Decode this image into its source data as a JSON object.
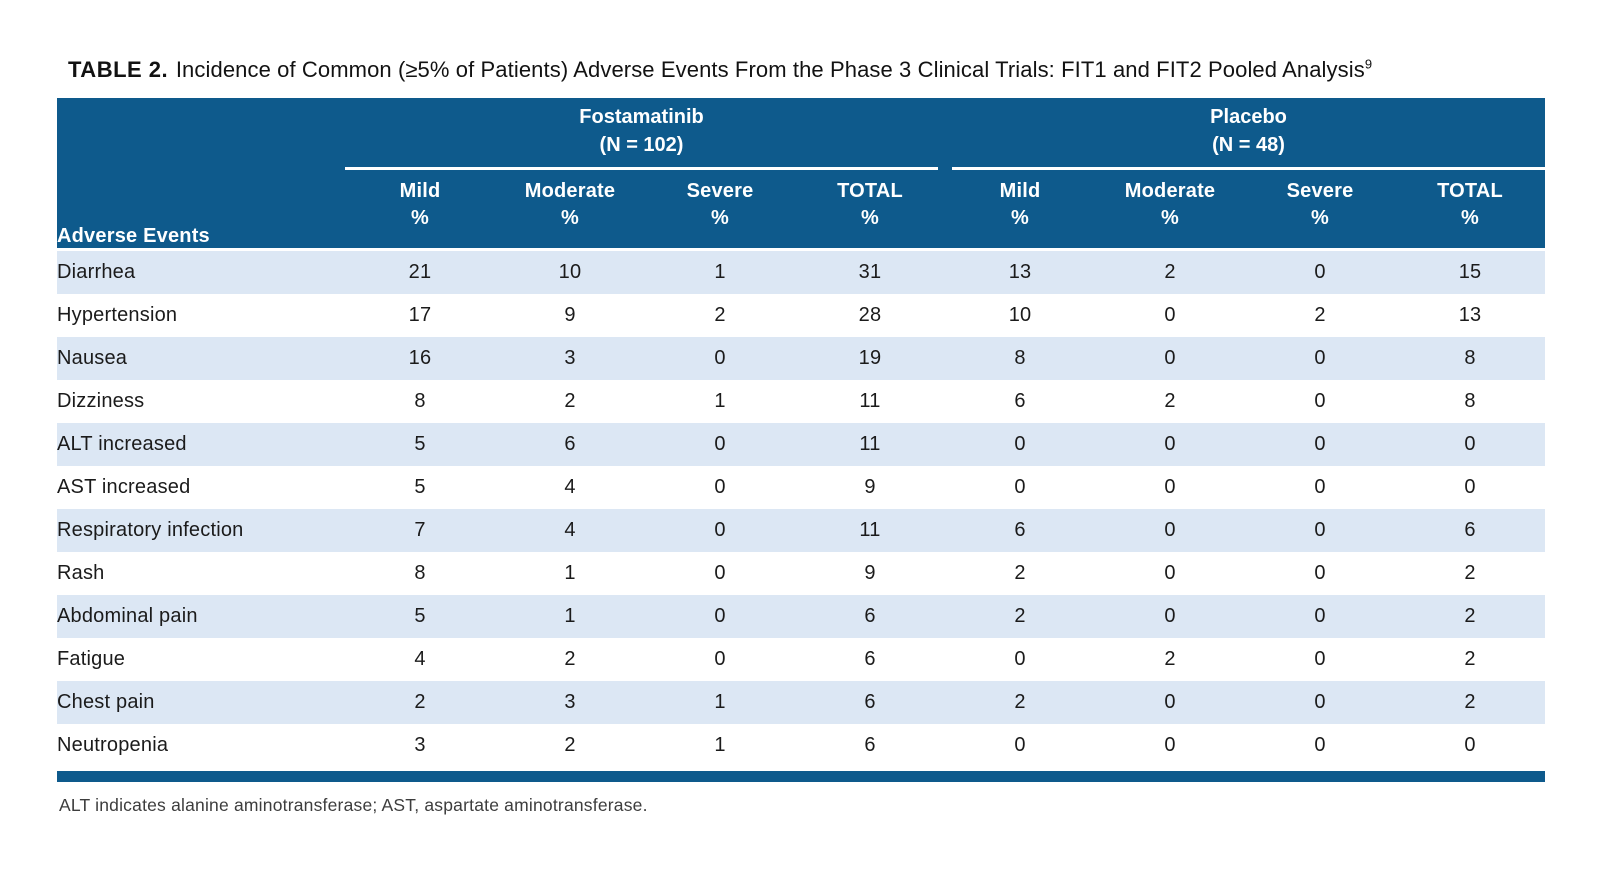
{
  "title": {
    "label": "TABLE 2.",
    "text": "Incidence of Common (≥5% of Patients) Adverse Events From the Phase 3 Clinical Trials: FIT1 and FIT2 Pooled Analysis",
    "citation_superscript": "9"
  },
  "colors": {
    "header_bg": "#0E5A8C",
    "header_text": "#FFFFFF",
    "row_stripe_bg": "#DCE7F4",
    "row_plain_bg": "#FFFFFF",
    "body_text": "#1B1B1B",
    "footnote_text": "#3D3D3D"
  },
  "table": {
    "row_header_label": "Adverse Events",
    "column_groups": [
      {
        "name": "Fostamatinib",
        "n": "(N = 102)"
      },
      {
        "name": "Placebo",
        "n": "(N = 48)"
      }
    ],
    "severity_columns": [
      "Mild",
      "Moderate",
      "Severe",
      "TOTAL"
    ],
    "unit_label": "%",
    "rows": [
      {
        "event": "Diarrhea",
        "fostamatinib": [
          21,
          10,
          1,
          31
        ],
        "placebo": [
          13,
          2,
          0,
          15
        ]
      },
      {
        "event": "Hypertension",
        "fostamatinib": [
          17,
          9,
          2,
          28
        ],
        "placebo": [
          10,
          0,
          2,
          13
        ]
      },
      {
        "event": "Nausea",
        "fostamatinib": [
          16,
          3,
          0,
          19
        ],
        "placebo": [
          8,
          0,
          0,
          8
        ]
      },
      {
        "event": "Dizziness",
        "fostamatinib": [
          8,
          2,
          1,
          11
        ],
        "placebo": [
          6,
          2,
          0,
          8
        ]
      },
      {
        "event": "ALT increased",
        "fostamatinib": [
          5,
          6,
          0,
          11
        ],
        "placebo": [
          0,
          0,
          0,
          0
        ]
      },
      {
        "event": "AST increased",
        "fostamatinib": [
          5,
          4,
          0,
          9
        ],
        "placebo": [
          0,
          0,
          0,
          0
        ]
      },
      {
        "event": "Respiratory infection",
        "fostamatinib": [
          7,
          4,
          0,
          11
        ],
        "placebo": [
          6,
          0,
          0,
          6
        ]
      },
      {
        "event": "Rash",
        "fostamatinib": [
          8,
          1,
          0,
          9
        ],
        "placebo": [
          2,
          0,
          0,
          2
        ]
      },
      {
        "event": "Abdominal pain",
        "fostamatinib": [
          5,
          1,
          0,
          6
        ],
        "placebo": [
          2,
          0,
          0,
          2
        ]
      },
      {
        "event": "Fatigue",
        "fostamatinib": [
          4,
          2,
          0,
          6
        ],
        "placebo": [
          0,
          2,
          0,
          2
        ]
      },
      {
        "event": "Chest pain",
        "fostamatinib": [
          2,
          3,
          1,
          6
        ],
        "placebo": [
          2,
          0,
          0,
          2
        ]
      },
      {
        "event": "Neutropenia",
        "fostamatinib": [
          3,
          2,
          1,
          6
        ],
        "placebo": [
          0,
          0,
          0,
          0
        ]
      }
    ]
  },
  "footnote": "ALT indicates alanine aminotransferase; AST, aspartate aminotransferase."
}
